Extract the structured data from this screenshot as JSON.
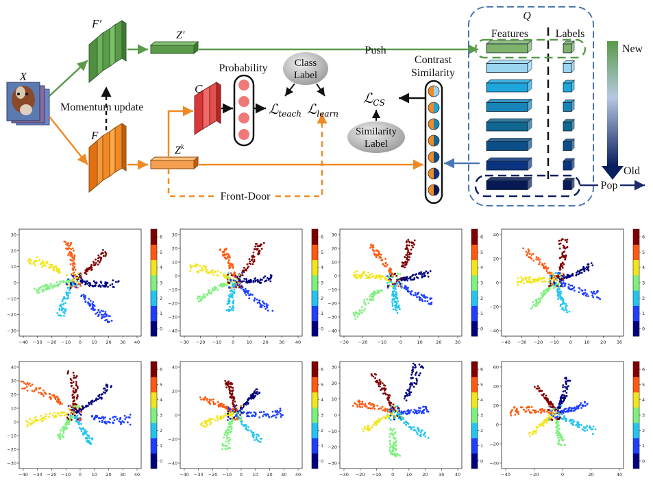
{
  "diagram": {
    "input_label": "X",
    "momentum_encoder_label": "F′",
    "encoder_label": "F",
    "momentum_feature_label": "Z′",
    "feature_label": "Z",
    "feature_label_sup": "k",
    "classifier_label": "C",
    "momentum_update_label": "Momentum update",
    "probability_label": "Probability",
    "class_label_bubble": [
      "Class",
      "Label"
    ],
    "loss_teach": {
      "main": "ℒ",
      "sub": "teach"
    },
    "loss_learn": {
      "main": "ℒ",
      "sub": "learn"
    },
    "loss_cs": {
      "main": "ℒ",
      "sub": "CS"
    },
    "similarity_label_bubble": [
      "Similarity",
      "Label"
    ],
    "contrast_similarity_label": [
      "Contrast",
      "Similarity"
    ],
    "push_label": "Push",
    "pop_label": "Pop",
    "front_door_label": "Front-Door",
    "queue_label": "Q",
    "features_header": "Features",
    "labels_header": "Labels",
    "gradient_new_label": "New",
    "gradient_old_label": "Old"
  },
  "colors": {
    "green": "#5a9a4a",
    "orange": "#f08a24",
    "red": "#e25050",
    "queue_border": "#4a77b0",
    "arrow_blue": "#2c5aa0"
  },
  "queue_feature_colors": [
    "#7fb26b",
    "#9ad4ef",
    "#1ea6dc",
    "#1784b8",
    "#106791",
    "#0c4f88",
    "#0a3480",
    "#071a55"
  ],
  "colorbar": {
    "ticks": [
      "0",
      "1",
      "2",
      "3",
      "4",
      "5",
      "6"
    ],
    "colors": [
      "#00007f",
      "#1f3fff",
      "#25c4f0",
      "#7ef07e",
      "#f2e51c",
      "#ff5a10",
      "#800000"
    ]
  },
  "scatter_plots": [
    {
      "xticks": [
        "−40",
        "−30",
        "−20",
        "−10",
        "0",
        "10",
        "20",
        "30",
        "40"
      ],
      "yticks": [
        "30",
        "20",
        "10",
        "0",
        "−10",
        "−20",
        "−30"
      ]
    },
    {
      "xticks": [
        "−30",
        "−20",
        "−10",
        "0",
        "10",
        "20",
        "30",
        "40"
      ],
      "yticks": [
        "30",
        "20",
        "10",
        "0",
        "−10",
        "−20",
        "−30",
        "−40"
      ]
    },
    {
      "xticks": [
        "−30",
        "−20",
        "−10",
        "0",
        "10",
        "20",
        "30"
      ],
      "yticks": [
        "30",
        "20",
        "10",
        "0",
        "−10",
        "−20",
        "−30",
        "−40"
      ]
    },
    {
      "xticks": [
        "−40",
        "−30",
        "−20",
        "−10",
        "0",
        "10",
        "20",
        "30"
      ],
      "yticks": [
        "40",
        "20",
        "0",
        "−20",
        "−40"
      ]
    },
    {
      "xticks": [
        "−40",
        "−30",
        "−20",
        "−10",
        "0",
        "10",
        "20",
        "30",
        "40"
      ],
      "yticks": [
        "40",
        "30",
        "20",
        "10",
        "0",
        "−10",
        "−20",
        "−30"
      ]
    },
    {
      "xticks": [
        "−40",
        "−30",
        "−20",
        "−10",
        "0",
        "10",
        "20",
        "30",
        "40"
      ],
      "yticks": [
        "40",
        "20",
        "0",
        "−20",
        "−40"
      ]
    },
    {
      "xticks": [
        "−30",
        "−20",
        "−10",
        "0",
        "10",
        "20",
        "30",
        "40"
      ],
      "yticks": [
        "30",
        "20",
        "10",
        "0",
        "−10",
        "−20",
        "−30"
      ]
    },
    {
      "xticks": [
        "−40",
        "−20",
        "0",
        "20",
        "40"
      ],
      "yticks": [
        "60",
        "40",
        "20",
        "0",
        "−20",
        "−40"
      ]
    }
  ]
}
